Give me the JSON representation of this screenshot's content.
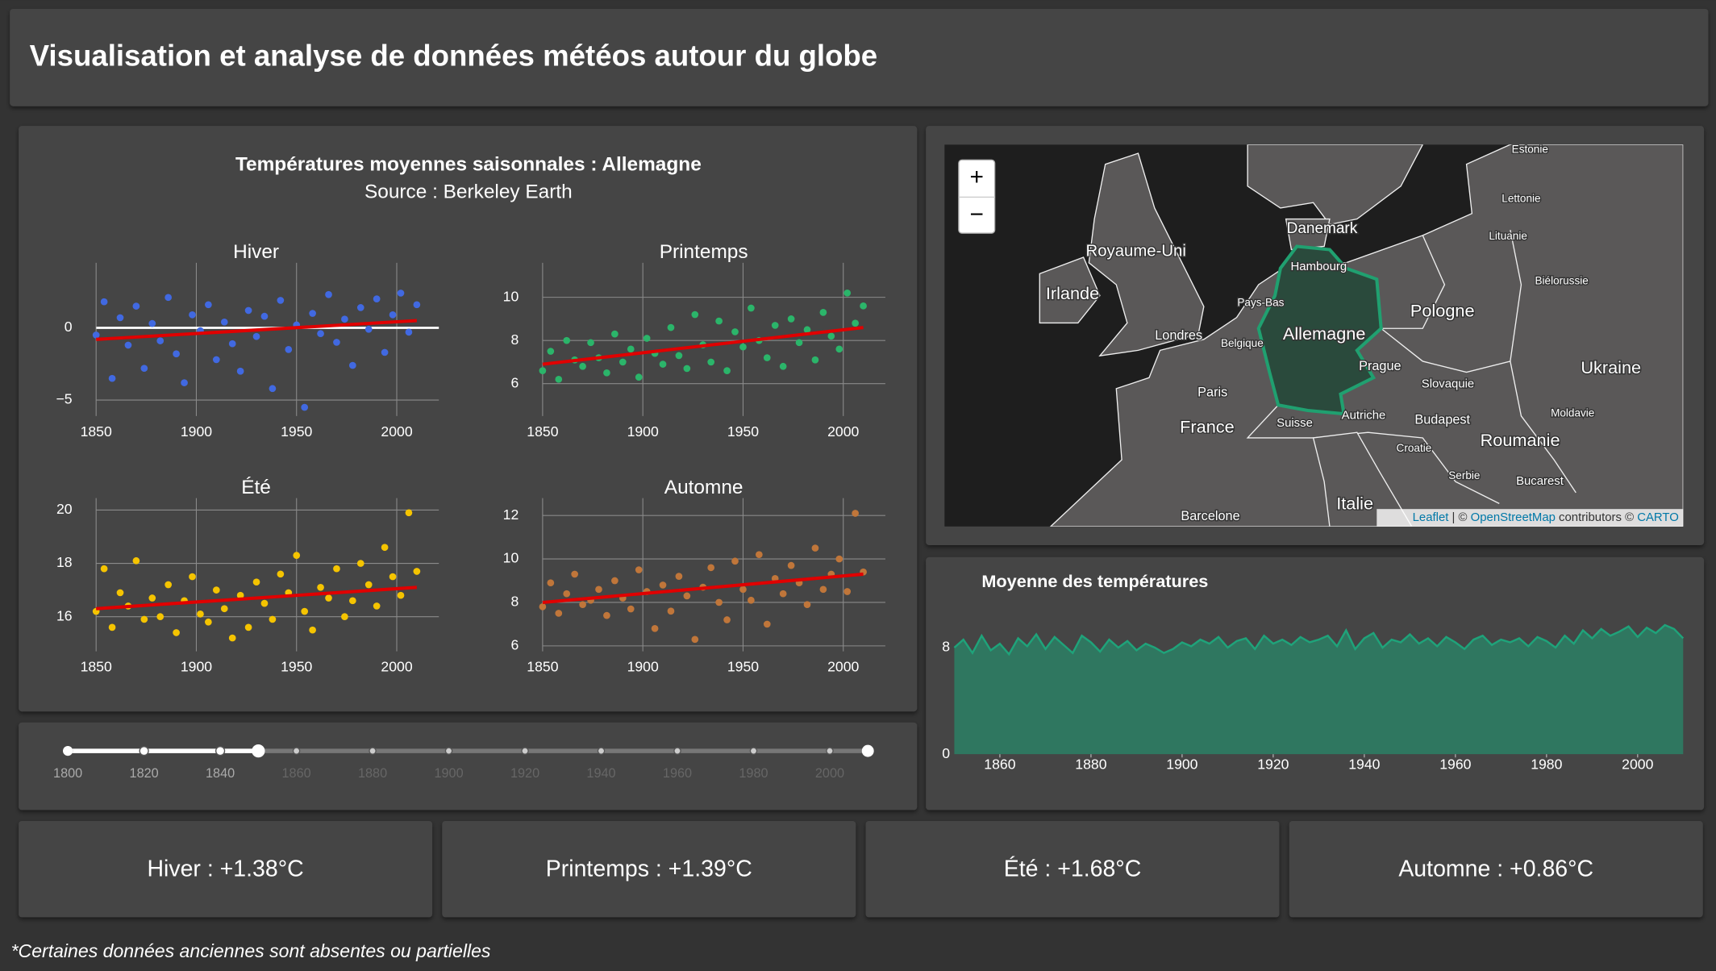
{
  "header": {
    "title": "Visualisation et analyse de données météos autour du globe"
  },
  "seasonal_panel": {
    "title": "Températures moyennes saisonnales : Allemagne",
    "subtitle": "Source : Berkeley Earth"
  },
  "chart_data": [
    {
      "type": "scatter",
      "title": "Hiver",
      "x": [
        1850,
        1854,
        1858,
        1862,
        1866,
        1870,
        1874,
        1878,
        1882,
        1886,
        1890,
        1894,
        1898,
        1902,
        1906,
        1910,
        1914,
        1918,
        1922,
        1926,
        1930,
        1934,
        1938,
        1942,
        1946,
        1950,
        1954,
        1958,
        1962,
        1966,
        1970,
        1974,
        1978,
        1982,
        1986,
        1990,
        1994,
        1998,
        2002,
        2006,
        2010
      ],
      "series": [
        {
          "color": "#4169e1",
          "values": [
            -0.5,
            1.8,
            -3.5,
            0.7,
            -1.2,
            1.5,
            -2.8,
            0.3,
            -0.9,
            2.1,
            -1.8,
            -3.8,
            0.9,
            -0.2,
            1.6,
            -2.2,
            0.4,
            -1.1,
            -3.0,
            1.2,
            -0.6,
            0.8,
            -4.2,
            1.9,
            -1.5,
            0.2,
            -5.5,
            1.0,
            -0.4,
            2.3,
            -1.0,
            0.6,
            -2.6,
            1.4,
            -0.1,
            2.0,
            -1.7,
            0.9,
            2.4,
            -0.3,
            1.6
          ]
        }
      ],
      "trend": {
        "color": "#e00000",
        "x": [
          1850,
          2010
        ],
        "values": [
          -0.8,
          0.5
        ]
      },
      "zeroline": true,
      "xlim": [
        1843,
        2021
      ],
      "xticks": [
        1850,
        1900,
        1950,
        2000
      ],
      "ylim": [
        -6.1,
        4.5
      ],
      "yticks": [
        {
          "value": -5,
          "label": "−5"
        },
        0
      ],
      "grid": true
    },
    {
      "type": "scatter",
      "title": "Printemps",
      "x": [
        1850,
        1854,
        1858,
        1862,
        1866,
        1870,
        1874,
        1878,
        1882,
        1886,
        1890,
        1894,
        1898,
        1902,
        1906,
        1910,
        1914,
        1918,
        1922,
        1926,
        1930,
        1934,
        1938,
        1942,
        1946,
        1950,
        1954,
        1958,
        1962,
        1966,
        1970,
        1974,
        1978,
        1982,
        1986,
        1990,
        1994,
        1998,
        2002,
        2006,
        2010
      ],
      "series": [
        {
          "color": "#2bb56a",
          "values": [
            6.6,
            7.5,
            6.2,
            8.0,
            7.1,
            6.8,
            7.9,
            7.2,
            6.5,
            8.3,
            7.0,
            7.6,
            6.3,
            8.1,
            7.4,
            6.9,
            8.6,
            7.3,
            6.7,
            9.2,
            7.8,
            7.0,
            8.9,
            6.6,
            8.4,
            7.7,
            9.5,
            8.0,
            7.2,
            8.7,
            6.8,
            9.0,
            7.9,
            8.5,
            7.1,
            9.3,
            8.2,
            7.6,
            10.2,
            8.8,
            9.6
          ]
        }
      ],
      "trend": {
        "color": "#e00000",
        "x": [
          1850,
          2010
        ],
        "values": [
          6.9,
          8.6
        ]
      },
      "xlim": [
        1843,
        2021
      ],
      "xticks": [
        1850,
        1900,
        1950,
        2000
      ],
      "ylim": [
        4.5,
        11.6
      ],
      "yticks": [
        6,
        8,
        10
      ],
      "grid": true
    },
    {
      "type": "scatter",
      "title": "Été",
      "x": [
        1850,
        1854,
        1858,
        1862,
        1866,
        1870,
        1874,
        1878,
        1882,
        1886,
        1890,
        1894,
        1898,
        1902,
        1906,
        1910,
        1914,
        1918,
        1922,
        1926,
        1930,
        1934,
        1938,
        1942,
        1946,
        1950,
        1954,
        1958,
        1962,
        1966,
        1970,
        1974,
        1978,
        1982,
        1986,
        1990,
        1994,
        1998,
        2002,
        2006,
        2010
      ],
      "series": [
        {
          "color": "#f5c400",
          "values": [
            16.2,
            17.8,
            15.6,
            16.9,
            16.4,
            18.1,
            15.9,
            16.7,
            16.0,
            17.2,
            15.4,
            16.6,
            17.5,
            16.1,
            15.8,
            17.0,
            16.3,
            15.2,
            16.8,
            15.6,
            17.3,
            16.5,
            15.9,
            17.6,
            16.9,
            18.3,
            16.2,
            15.5,
            17.1,
            16.7,
            17.8,
            16.0,
            16.6,
            18.0,
            17.2,
            16.4,
            18.6,
            17.5,
            16.8,
            19.9,
            17.7
          ]
        }
      ],
      "trend": {
        "color": "#e00000",
        "x": [
          1850,
          2010
        ],
        "values": [
          16.3,
          17.1
        ]
      },
      "xlim": [
        1843,
        2021
      ],
      "xticks": [
        1850,
        1900,
        1950,
        2000
      ],
      "ylim": [
        14.7,
        20.45
      ],
      "yticks": [
        16,
        18,
        20
      ],
      "grid": true
    },
    {
      "type": "scatter",
      "title": "Automne",
      "x": [
        1850,
        1854,
        1858,
        1862,
        1866,
        1870,
        1874,
        1878,
        1882,
        1886,
        1890,
        1894,
        1898,
        1902,
        1906,
        1910,
        1914,
        1918,
        1922,
        1926,
        1930,
        1934,
        1938,
        1942,
        1946,
        1950,
        1954,
        1958,
        1962,
        1966,
        1970,
        1974,
        1978,
        1982,
        1986,
        1990,
        1994,
        1998,
        2002,
        2006,
        2010
      ],
      "series": [
        {
          "color": "#c0763a",
          "values": [
            7.8,
            8.9,
            7.5,
            8.4,
            9.3,
            7.9,
            8.1,
            8.6,
            7.4,
            9.0,
            8.2,
            7.7,
            9.5,
            8.5,
            6.8,
            8.8,
            7.6,
            9.2,
            8.3,
            6.3,
            8.7,
            9.6,
            8.0,
            7.2,
            9.9,
            8.6,
            8.1,
            10.2,
            7.0,
            9.1,
            8.4,
            9.7,
            8.9,
            7.9,
            10.5,
            8.6,
            9.3,
            10.0,
            8.5,
            12.1,
            9.4
          ]
        }
      ],
      "trend": {
        "color": "#e00000",
        "x": [
          1850,
          2010
        ],
        "values": [
          8.0,
          9.3
        ]
      },
      "xlim": [
        1843,
        2021
      ],
      "xticks": [
        1850,
        1900,
        1950,
        2000
      ],
      "ylim": [
        5.75,
        12.8
      ],
      "yticks": [
        6,
        8,
        10,
        12
      ],
      "grid": true
    },
    {
      "type": "area",
      "title": "Moyenne des températures",
      "x": [
        1850,
        1852,
        1854,
        1856,
        1858,
        1860,
        1862,
        1864,
        1866,
        1868,
        1870,
        1872,
        1874,
        1876,
        1878,
        1880,
        1882,
        1884,
        1886,
        1888,
        1890,
        1892,
        1894,
        1896,
        1898,
        1900,
        1902,
        1904,
        1906,
        1908,
        1910,
        1912,
        1914,
        1916,
        1918,
        1920,
        1922,
        1924,
        1926,
        1928,
        1930,
        1932,
        1934,
        1936,
        1938,
        1940,
        1942,
        1944,
        1946,
        1948,
        1950,
        1952,
        1954,
        1956,
        1958,
        1960,
        1962,
        1964,
        1966,
        1968,
        1970,
        1972,
        1974,
        1976,
        1978,
        1980,
        1982,
        1984,
        1986,
        1988,
        1990,
        1992,
        1994,
        1996,
        1998,
        2000,
        2002,
        2004,
        2006,
        2008,
        2010
      ],
      "series": [
        {
          "color": "#2e7a62",
          "values": [
            8.0,
            8.6,
            7.6,
            8.9,
            7.8,
            8.3,
            7.5,
            8.7,
            8.1,
            9.0,
            7.9,
            8.8,
            8.2,
            7.6,
            8.9,
            8.4,
            7.7,
            8.6,
            8.0,
            8.5,
            7.8,
            8.3,
            8.0,
            7.6,
            7.9,
            8.4,
            8.1,
            8.6,
            8.3,
            8.8,
            8.0,
            8.5,
            8.7,
            7.9,
            8.9,
            8.3,
            8.6,
            8.2,
            8.8,
            8.4,
            8.6,
            8.9,
            8.1,
            9.3,
            7.9,
            8.7,
            9.1,
            8.0,
            8.6,
            8.4,
            9.0,
            8.3,
            8.7,
            8.1,
            8.8,
            8.4,
            7.9,
            8.6,
            8.9,
            8.2,
            8.6,
            8.4,
            8.7,
            8.1,
            8.8,
            8.5,
            8.0,
            8.9,
            8.3,
            9.3,
            8.7,
            9.4,
            8.9,
            9.2,
            9.6,
            8.8,
            9.5,
            9.1,
            9.7,
            9.4,
            8.7
          ]
        }
      ],
      "xlim": [
        1850,
        2010
      ],
      "xticks": [
        1860,
        1880,
        1900,
        1920,
        1940,
        1960,
        1980,
        2000
      ],
      "ylim": [
        0,
        10.6
      ],
      "yticks": [
        0,
        8
      ]
    }
  ],
  "slider": {
    "min": 1800,
    "max": 2010,
    "value": [
      1800,
      1850
    ],
    "marks": [
      1800,
      1820,
      1840,
      1860,
      1880,
      1900,
      1920,
      1940,
      1960,
      1980,
      2000
    ]
  },
  "map": {
    "zoom_in": "+",
    "zoom_out": "−",
    "labels": [
      "Estonie",
      "Lettonie",
      "Lituanie",
      "Danemark",
      "Royaume-Uni",
      "Irlande",
      "Hambourg",
      "Biélorussie",
      "Pologne",
      "Allemagne",
      "Pays-Bas",
      "Londres",
      "Belgique",
      "Prague",
      "Ukraine",
      "Paris",
      "Slovaquie",
      "France",
      "Suisse",
      "Autriche",
      "Budapest",
      "Moldavie",
      "Roumanie",
      "Croatie",
      "Serbie",
      "Bucarest",
      "Italie",
      "Barcelone"
    ],
    "attribution": [
      "Leaflet",
      " | © ",
      "OpenStreetMap",
      " contributors © ",
      "CARTO"
    ]
  },
  "cards": [
    "Hiver : +1.38°C",
    "Printemps : +1.39°C",
    "Été : +1.68°C",
    "Automne : +0.86°C"
  ],
  "footnote": "*Certaines données anciennes sont absentes ou partielles"
}
